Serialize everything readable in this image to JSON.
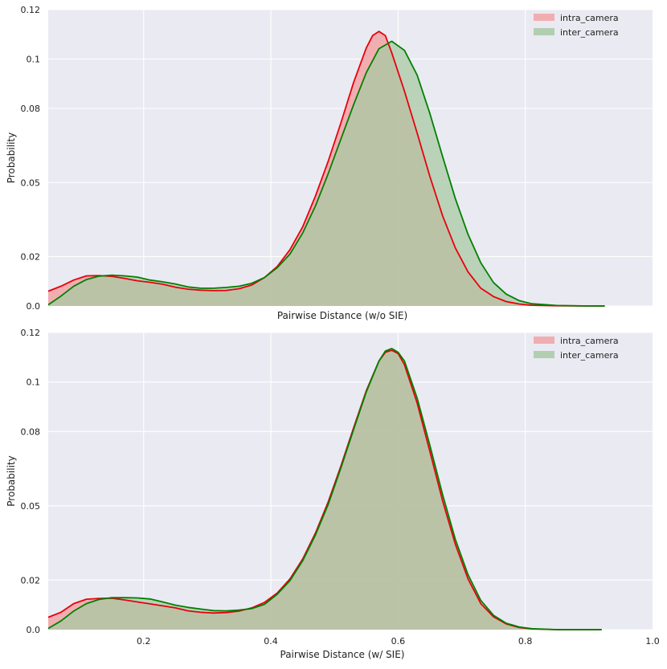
{
  "chart_data": [
    {
      "type": "area",
      "title": "",
      "xlabel": "Pairwise Distance (w/o SIE)",
      "ylabel": "Probability",
      "xlim": [
        0.05,
        1.0
      ],
      "ylim": [
        0,
        0.12
      ],
      "yticks": [
        0.0,
        0.02,
        0.05,
        0.08,
        0.1,
        0.12
      ],
      "ytick_labels": [
        "0.0",
        "0.02",
        "0.05",
        "0.08",
        "0.1",
        "0.12"
      ],
      "xticks": [],
      "xtick_labels": [],
      "grid": true,
      "legend_position": "top-right",
      "series": [
        {
          "name": "intra_camera",
          "color": "#e8000b",
          "fill": "#f2a3a6",
          "x": [
            0.05,
            0.07,
            0.09,
            0.11,
            0.13,
            0.15,
            0.17,
            0.19,
            0.21,
            0.23,
            0.25,
            0.27,
            0.29,
            0.31,
            0.33,
            0.35,
            0.37,
            0.39,
            0.41,
            0.43,
            0.45,
            0.47,
            0.49,
            0.51,
            0.53,
            0.55,
            0.56,
            0.57,
            0.58,
            0.59,
            0.61,
            0.63,
            0.65,
            0.67,
            0.69,
            0.71,
            0.73,
            0.75,
            0.77,
            0.79,
            0.81,
            0.85,
            0.9,
            0.925
          ],
          "values": [
            0.006,
            0.008,
            0.0105,
            0.0122,
            0.0123,
            0.012,
            0.0112,
            0.0102,
            0.0096,
            0.0088,
            0.0076,
            0.0068,
            0.0064,
            0.0062,
            0.0063,
            0.007,
            0.0085,
            0.0115,
            0.016,
            0.0228,
            0.032,
            0.0445,
            0.0585,
            0.074,
            0.0905,
            0.1045,
            0.1095,
            0.1112,
            0.1095,
            0.1025,
            0.087,
            0.07,
            0.0525,
            0.0365,
            0.0235,
            0.0138,
            0.0072,
            0.0038,
            0.0018,
            0.0008,
            0.0003,
            0.0001,
            0.0,
            0.0
          ]
        },
        {
          "name": "inter_camera",
          "color": "#008000",
          "fill": "#a8c9a4",
          "x": [
            0.05,
            0.07,
            0.09,
            0.11,
            0.13,
            0.15,
            0.17,
            0.19,
            0.21,
            0.23,
            0.25,
            0.27,
            0.29,
            0.31,
            0.33,
            0.35,
            0.37,
            0.39,
            0.41,
            0.43,
            0.45,
            0.47,
            0.49,
            0.51,
            0.53,
            0.55,
            0.57,
            0.59,
            0.61,
            0.63,
            0.65,
            0.67,
            0.69,
            0.71,
            0.73,
            0.75,
            0.77,
            0.79,
            0.81,
            0.85,
            0.9,
            0.925
          ],
          "values": [
            0.0005,
            0.004,
            0.008,
            0.0107,
            0.0121,
            0.0125,
            0.0122,
            0.0117,
            0.0105,
            0.0098,
            0.0089,
            0.0077,
            0.0072,
            0.0072,
            0.0075,
            0.008,
            0.0092,
            0.0115,
            0.0155,
            0.021,
            0.0295,
            0.0405,
            0.0535,
            0.0675,
            0.0815,
            0.0945,
            0.1042,
            0.1072,
            0.1035,
            0.0935,
            0.078,
            0.0605,
            0.0435,
            0.029,
            0.0175,
            0.0095,
            0.0048,
            0.0022,
            0.0009,
            0.0002,
            0.0,
            0.0
          ]
        }
      ]
    },
    {
      "type": "area",
      "title": "",
      "xlabel": "Pairwise Distance (w/ SIE)",
      "ylabel": "Probability",
      "xlim": [
        0.05,
        1.0
      ],
      "ylim": [
        0,
        0.12
      ],
      "yticks": [
        0.0,
        0.02,
        0.05,
        0.08,
        0.1,
        0.12
      ],
      "ytick_labels": [
        "0.0",
        "0.02",
        "0.05",
        "0.08",
        "0.1",
        "0.12"
      ],
      "xticks": [
        0.2,
        0.4,
        0.6,
        0.8,
        1.0
      ],
      "xtick_labels": [
        "0.2",
        "0.4",
        "0.6",
        "0.8",
        "1.0"
      ],
      "grid": true,
      "legend_position": "top-right",
      "series": [
        {
          "name": "intra_camera",
          "color": "#e8000b",
          "fill": "#f2a3a6",
          "x": [
            0.05,
            0.07,
            0.09,
            0.11,
            0.13,
            0.15,
            0.17,
            0.19,
            0.21,
            0.23,
            0.25,
            0.27,
            0.29,
            0.31,
            0.33,
            0.35,
            0.37,
            0.39,
            0.41,
            0.43,
            0.45,
            0.47,
            0.49,
            0.51,
            0.53,
            0.55,
            0.57,
            0.58,
            0.59,
            0.6,
            0.61,
            0.63,
            0.65,
            0.67,
            0.69,
            0.71,
            0.73,
            0.75,
            0.77,
            0.79,
            0.81,
            0.85,
            0.92
          ],
          "values": [
            0.005,
            0.007,
            0.0105,
            0.0123,
            0.0126,
            0.0127,
            0.012,
            0.0112,
            0.0104,
            0.0096,
            0.0088,
            0.0076,
            0.007,
            0.0067,
            0.0069,
            0.0075,
            0.0088,
            0.011,
            0.0148,
            0.0205,
            0.0285,
            0.039,
            0.0515,
            0.066,
            0.0815,
            0.0965,
            0.1085,
            0.112,
            0.1128,
            0.1115,
            0.107,
            0.0915,
            0.072,
            0.052,
            0.0345,
            0.0205,
            0.0105,
            0.0052,
            0.0023,
            0.0009,
            0.0003,
            0.0,
            0.0
          ]
        },
        {
          "name": "inter_camera",
          "color": "#008000",
          "fill": "#a8c9a4",
          "x": [
            0.05,
            0.07,
            0.09,
            0.11,
            0.13,
            0.15,
            0.17,
            0.19,
            0.21,
            0.23,
            0.25,
            0.27,
            0.29,
            0.31,
            0.33,
            0.35,
            0.37,
            0.39,
            0.41,
            0.43,
            0.45,
            0.47,
            0.49,
            0.51,
            0.53,
            0.55,
            0.57,
            0.58,
            0.59,
            0.6,
            0.61,
            0.63,
            0.65,
            0.67,
            0.69,
            0.71,
            0.73,
            0.75,
            0.77,
            0.79,
            0.81,
            0.85,
            0.92
          ],
          "values": [
            0.0005,
            0.0035,
            0.0075,
            0.0105,
            0.0122,
            0.0129,
            0.0129,
            0.0128,
            0.0124,
            0.0112,
            0.0099,
            0.009,
            0.0083,
            0.0077,
            0.0076,
            0.0079,
            0.0085,
            0.0102,
            0.0143,
            0.0198,
            0.0278,
            0.0382,
            0.0505,
            0.0652,
            0.0808,
            0.096,
            0.1085,
            0.1125,
            0.1135,
            0.112,
            0.1085,
            0.0935,
            0.0745,
            0.0545,
            0.0365,
            0.0222,
            0.0118,
            0.0058,
            0.0026,
            0.0011,
            0.0004,
            0.0,
            0.0
          ]
        }
      ]
    }
  ]
}
